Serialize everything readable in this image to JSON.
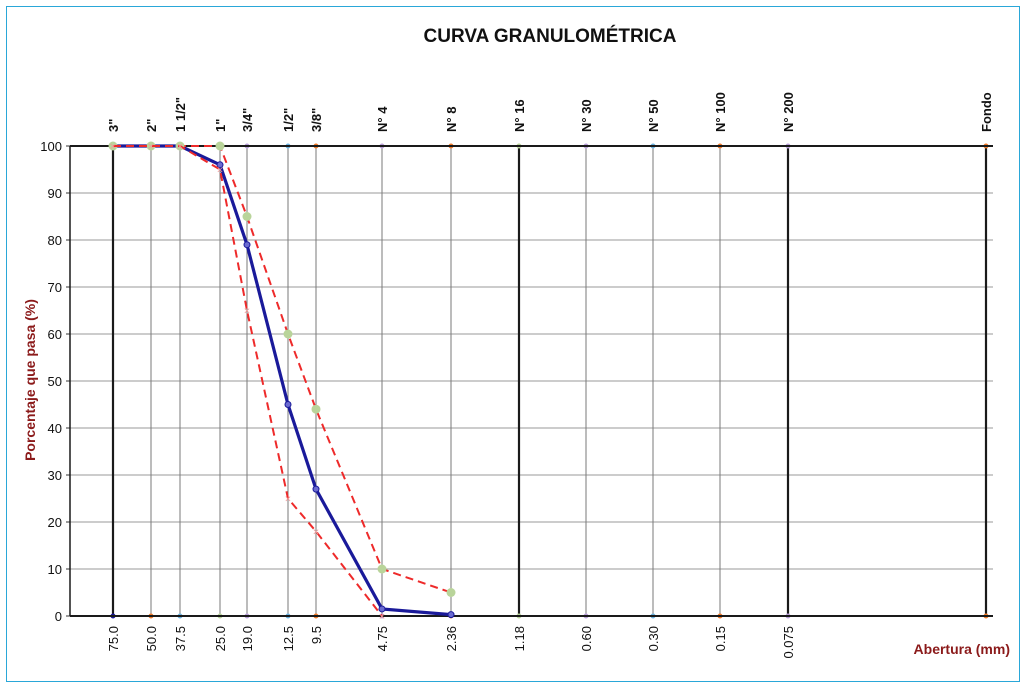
{
  "chart_data": {
    "type": "line",
    "title": "CURVA GRANULOMÉTRICA",
    "xlabel": "Abertura (mm)",
    "ylabel": "Porcentaje que pasa (%)",
    "x_scale": "log",
    "x_reversed": true,
    "ylim": [
      0,
      100
    ],
    "y_ticks": [
      "0",
      "10",
      "20",
      "30",
      "40",
      "50",
      "60",
      "70",
      "80",
      "90",
      "100"
    ],
    "grid": true,
    "sieves": [
      {
        "name": "3\"",
        "opening": 75.0,
        "label": "75.0"
      },
      {
        "name": "2\"",
        "opening": 50.0,
        "label": "50.0"
      },
      {
        "name": "1 1/2\"",
        "opening": 37.5,
        "label": "37.5"
      },
      {
        "name": "1\"",
        "opening": 25.0,
        "label": "25.0"
      },
      {
        "name": "3/4\"",
        "opening": 19.0,
        "label": "19.0"
      },
      {
        "name": "1/2\"",
        "opening": 12.5,
        "label": "12.5"
      },
      {
        "name": "3/8\"",
        "opening": 9.5,
        "label": "9.5"
      },
      {
        "name": "N° 4",
        "opening": 4.75,
        "label": "4.75"
      },
      {
        "name": "N° 8",
        "opening": 2.36,
        "label": "2.36"
      },
      {
        "name": "N° 16",
        "opening": 1.18,
        "label": "1.18"
      },
      {
        "name": "N° 30",
        "opening": 0.6,
        "label": "0.60"
      },
      {
        "name": "N° 50",
        "opening": 0.3,
        "label": "0.30"
      },
      {
        "name": "N° 100",
        "opening": 0.15,
        "label": "0.15"
      },
      {
        "name": "N° 200",
        "opening": 0.075,
        "label": "0.075"
      },
      {
        "name": "Fondo",
        "opening": 0.05,
        "label": ""
      }
    ],
    "series": [
      {
        "style": "solid",
        "color": "#1a1a9a",
        "x": [
          75.0,
          50.0,
          37.5,
          25.0,
          19.0,
          12.5,
          9.5,
          4.75,
          2.36
        ],
        "y": [
          100,
          100,
          100,
          96,
          79,
          45,
          27,
          1.5,
          0.3
        ]
      },
      {
        "style": "dashed",
        "color": "#ee2a2a",
        "x": [
          75.0,
          50.0,
          37.5,
          25.0,
          19.0,
          12.5,
          9.5,
          4.75,
          2.36
        ],
        "y": [
          100,
          100,
          100,
          100,
          85,
          60,
          44,
          10,
          5
        ]
      },
      {
        "style": "dashed",
        "color": "#ee2a2a",
        "x": [
          75.0,
          50.0,
          37.5,
          25.0,
          19.0,
          12.5,
          9.5,
          4.75
        ],
        "y": [
          100,
          100,
          100,
          95,
          65,
          25,
          18,
          0
        ]
      }
    ],
    "colors": {
      "solid": "#1a1a9a",
      "dashed": "#ee2a2a",
      "marker_green": "#b9d49a",
      "frame": "#2aa7d8",
      "axis_label": "#8b1a1a"
    }
  }
}
